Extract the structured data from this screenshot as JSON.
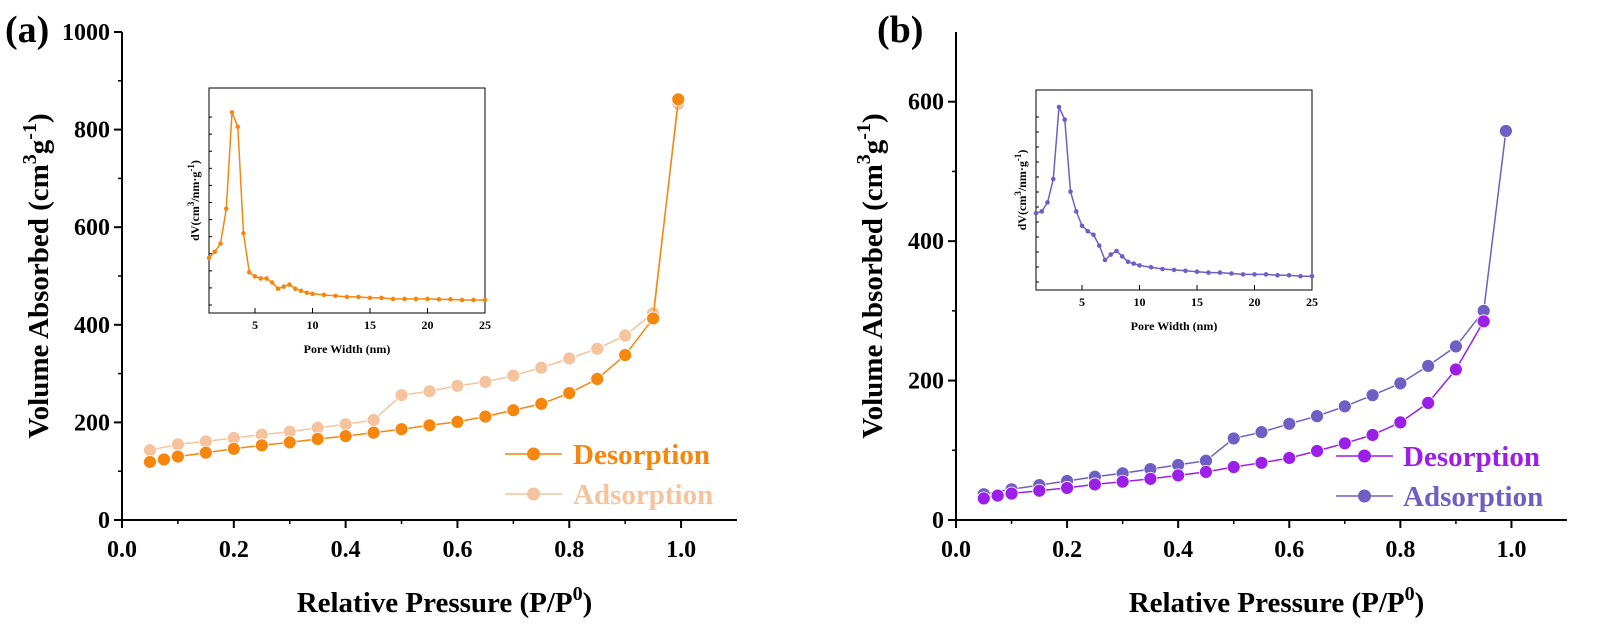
{
  "chart_data": [
    {
      "type": "line",
      "panel_label": "(a)",
      "xlabel_main": "Relative Pressure (P/P",
      "xlabel_sup": "0",
      "xlabel_end": ")",
      "ylabel_main": "Volume Absorbed (cm",
      "ylabel_sup1": "3",
      "ylabel_mid": "g",
      "ylabel_sup2": "-1",
      "ylabel_end": ")",
      "xlim": [
        0.0,
        1.1
      ],
      "ylim": [
        0,
        1000
      ],
      "xticks": [
        "0.0",
        "0.2",
        "0.4",
        "0.6",
        "0.8",
        "1.0"
      ],
      "yticks": [
        "0",
        "200",
        "400",
        "600",
        "800",
        "1000"
      ],
      "legend_position": "bottom-right",
      "series": [
        {
          "name": "Desorption",
          "color": "#f5870f",
          "x": [
            0.05,
            0.075,
            0.1,
            0.15,
            0.2,
            0.25,
            0.3,
            0.35,
            0.4,
            0.45,
            0.5,
            0.55,
            0.6,
            0.65,
            0.7,
            0.75,
            0.8,
            0.85,
            0.9,
            0.95,
            0.995
          ],
          "y": [
            119,
            124,
            130,
            138,
            146,
            153,
            159,
            166,
            172,
            179,
            186,
            194,
            201,
            212,
            225,
            238,
            260,
            289,
            338,
            413,
            862
          ]
        },
        {
          "name": "Adsorption",
          "color": "#f5c39e",
          "x": [
            0.05,
            0.1,
            0.15,
            0.2,
            0.25,
            0.3,
            0.35,
            0.4,
            0.45,
            0.5,
            0.55,
            0.6,
            0.65,
            0.7,
            0.75,
            0.8,
            0.85,
            0.9,
            0.95,
            0.995
          ],
          "y": [
            143,
            155,
            161,
            168,
            175,
            181,
            189,
            196,
            205,
            256,
            264,
            275,
            283,
            296,
            312,
            331,
            351,
            378,
            424,
            853
          ]
        }
      ],
      "inset": {
        "xlabel": "Pore Width (nm)",
        "ylabel_main": "dV(cm",
        "ylabel_sup1": "3",
        "ylabel_mid": "/nm·g",
        "ylabel_sup2": "-1",
        "ylabel_end": ")",
        "xticks": [
          "5",
          "10",
          "15",
          "20",
          "25"
        ],
        "tick_values": [
          5,
          10,
          15,
          20,
          25
        ],
        "xlim": [
          1,
          25
        ],
        "ylim": [
          0,
          1
        ],
        "color": "#f5870f",
        "x": [
          1.0,
          1.5,
          2.0,
          2.5,
          3.0,
          3.5,
          4.0,
          4.5,
          5.0,
          5.5,
          6.0,
          6.5,
          7.0,
          7.5,
          8.0,
          8.5,
          9.0,
          9.5,
          10.0,
          11.0,
          12.0,
          13.0,
          14.0,
          15.0,
          16.0,
          17.0,
          18.0,
          19.0,
          20.0,
          21.0,
          22.0,
          23.0,
          24.0,
          25.0
        ],
        "y": [
          0.21,
          0.24,
          0.28,
          0.45,
          0.92,
          0.85,
          0.33,
          0.14,
          0.12,
          0.11,
          0.11,
          0.09,
          0.06,
          0.07,
          0.08,
          0.06,
          0.05,
          0.04,
          0.035,
          0.03,
          0.025,
          0.02,
          0.02,
          0.015,
          0.015,
          0.01,
          0.01,
          0.01,
          0.01,
          0.008,
          0.008,
          0.005,
          0.005,
          0.005
        ]
      }
    },
    {
      "type": "line",
      "panel_label": "(b)",
      "xlabel_main": "Relative Pressure (P/P",
      "xlabel_sup": "0",
      "xlabel_end": ")",
      "ylabel_main": "Volume Absorbed (cm",
      "ylabel_sup1": "3",
      "ylabel_mid": "g",
      "ylabel_sup2": "-1",
      "ylabel_end": ")",
      "xlim": [
        0.0,
        1.1
      ],
      "ylim": [
        0,
        700
      ],
      "xticks": [
        "0.0",
        "0.2",
        "0.4",
        "0.6",
        "0.8",
        "1.0"
      ],
      "yticks": [
        "0",
        "200",
        "400",
        "600"
      ],
      "legend_position": "bottom-right",
      "series": [
        {
          "name": "Desorption",
          "color": "#9b1fe8",
          "x": [
            0.05,
            0.075,
            0.1,
            0.15,
            0.2,
            0.25,
            0.3,
            0.35,
            0.4,
            0.45,
            0.5,
            0.55,
            0.6,
            0.65,
            0.7,
            0.75,
            0.8,
            0.85,
            0.9,
            0.95
          ],
          "y": [
            31,
            35,
            38,
            42,
            46,
            51,
            55,
            59,
            64,
            69,
            76,
            82,
            89,
            99,
            110,
            122,
            140,
            168,
            216,
            285
          ]
        },
        {
          "name": "Adsorption",
          "color": "#6f5fc4",
          "x": [
            0.05,
            0.1,
            0.15,
            0.2,
            0.25,
            0.3,
            0.35,
            0.4,
            0.45,
            0.5,
            0.55,
            0.6,
            0.65,
            0.7,
            0.75,
            0.8,
            0.85,
            0.9,
            0.95,
            0.99
          ],
          "y": [
            37,
            44,
            50,
            56,
            62,
            67,
            73,
            79,
            85,
            117,
            126,
            138,
            149,
            163,
            179,
            196,
            221,
            249,
            300,
            558
          ]
        }
      ],
      "inset": {
        "xlabel": "Pore Width (nm)",
        "ylabel_main": "dV(cm",
        "ylabel_sup1": "3",
        "ylabel_mid": "/nm·g",
        "ylabel_sup2": "-1",
        "ylabel_end": ")",
        "xticks": [
          "5",
          "10",
          "15",
          "20",
          "25"
        ],
        "tick_values": [
          5,
          10,
          15,
          20,
          25
        ],
        "xlim": [
          1,
          25
        ],
        "ylim": [
          0,
          1
        ],
        "color": "#6f5fc4",
        "x": [
          1.0,
          1.5,
          2.0,
          2.5,
          3.0,
          3.5,
          4.0,
          4.5,
          5.0,
          5.5,
          6.0,
          6.5,
          7.0,
          7.5,
          8.0,
          8.5,
          9.0,
          9.5,
          10.0,
          11.0,
          12.0,
          13.0,
          14.0,
          15.0,
          16.0,
          17.0,
          18.0,
          19.0,
          20.0,
          21.0,
          22.0,
          23.0,
          24.0,
          25.0
        ],
        "y": [
          0.36,
          0.37,
          0.42,
          0.55,
          0.95,
          0.88,
          0.48,
          0.37,
          0.29,
          0.26,
          0.24,
          0.18,
          0.1,
          0.13,
          0.15,
          0.12,
          0.09,
          0.08,
          0.07,
          0.06,
          0.05,
          0.045,
          0.04,
          0.035,
          0.03,
          0.03,
          0.025,
          0.02,
          0.02,
          0.02,
          0.015,
          0.015,
          0.01,
          0.01
        ]
      }
    }
  ]
}
